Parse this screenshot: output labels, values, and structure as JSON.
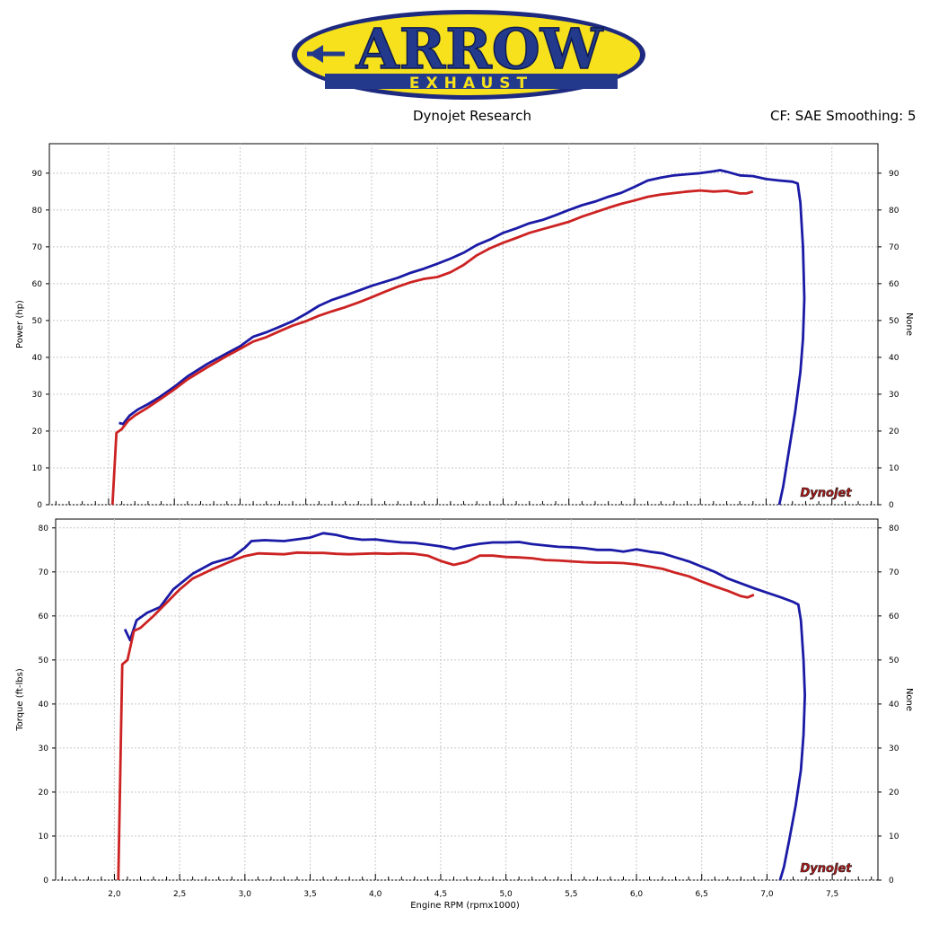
{
  "logo": {
    "brand": "ARROW",
    "sub": "EXHAUST"
  },
  "header": {
    "left": "Dynojet Research",
    "right": "CF: SAE Smoothing: 5"
  },
  "colors": {
    "blue": "#1a1aa6",
    "red": "#cc2222",
    "grid": "#c8c8c8"
  },
  "watermark": {
    "text": "Dynojet"
  },
  "chart_data": [
    {
      "type": "line",
      "ylabel": "Power (hp)",
      "ylabel_right": "None",
      "xlim": [
        1.55,
        7.85
      ],
      "ylim": [
        0,
        98
      ],
      "yticks": [
        0,
        10,
        20,
        30,
        40,
        50,
        60,
        70,
        80,
        90
      ],
      "grid": true,
      "series": [
        {
          "color": "blue",
          "points": [
            [
              2.08,
              22.2
            ],
            [
              2.11,
              21.9
            ],
            [
              2.16,
              24.2
            ],
            [
              2.22,
              25.8
            ],
            [
              2.3,
              27.3
            ],
            [
              2.38,
              29
            ],
            [
              2.5,
              32
            ],
            [
              2.6,
              34.8
            ],
            [
              2.75,
              38.2
            ],
            [
              2.9,
              41.1
            ],
            [
              3.0,
              43
            ],
            [
              3.1,
              45.6
            ],
            [
              3.2,
              46.8
            ],
            [
              3.3,
              48.3
            ],
            [
              3.4,
              49.8
            ],
            [
              3.5,
              51.8
            ],
            [
              3.6,
              54
            ],
            [
              3.7,
              55.6
            ],
            [
              3.8,
              56.8
            ],
            [
              3.9,
              58.1
            ],
            [
              4.0,
              59.4
            ],
            [
              4.1,
              60.5
            ],
            [
              4.2,
              61.6
            ],
            [
              4.3,
              63
            ],
            [
              4.4,
              64.1
            ],
            [
              4.5,
              65.4
            ],
            [
              4.6,
              66.8
            ],
            [
              4.7,
              68.4
            ],
            [
              4.8,
              70.5
            ],
            [
              4.9,
              72
            ],
            [
              5.0,
              73.8
            ],
            [
              5.1,
              75
            ],
            [
              5.2,
              76.4
            ],
            [
              5.3,
              77.3
            ],
            [
              5.4,
              78.6
            ],
            [
              5.5,
              80
            ],
            [
              5.6,
              81.3
            ],
            [
              5.7,
              82.3
            ],
            [
              5.8,
              83.6
            ],
            [
              5.9,
              84.7
            ],
            [
              6.0,
              86.3
            ],
            [
              6.1,
              88
            ],
            [
              6.2,
              88.8
            ],
            [
              6.3,
              89.4
            ],
            [
              6.4,
              89.7
            ],
            [
              6.5,
              90
            ],
            [
              6.6,
              90.5
            ],
            [
              6.65,
              90.8
            ],
            [
              6.7,
              90.4
            ],
            [
              6.8,
              89.4
            ],
            [
              6.9,
              89.2
            ],
            [
              7.0,
              88.4
            ],
            [
              7.1,
              88
            ],
            [
              7.2,
              87.7
            ],
            [
              7.24,
              87.2
            ],
            [
              7.26,
              82
            ],
            [
              7.28,
              70
            ],
            [
              7.29,
              56
            ],
            [
              7.28,
              45
            ],
            [
              7.26,
              36
            ],
            [
              7.22,
              25
            ],
            [
              7.17,
              14
            ],
            [
              7.13,
              5
            ],
            [
              7.1,
              0
            ]
          ]
        },
        {
          "color": "red",
          "points": [
            [
              2.03,
              0
            ],
            [
              2.06,
              19.5
            ],
            [
              2.1,
              20.5
            ],
            [
              2.15,
              22.8
            ],
            [
              2.2,
              24.2
            ],
            [
              2.3,
              26.4
            ],
            [
              2.4,
              28.8
            ],
            [
              2.5,
              31.3
            ],
            [
              2.6,
              34
            ],
            [
              2.75,
              37.3
            ],
            [
              2.9,
              40.4
            ],
            [
              3.0,
              42.3
            ],
            [
              3.1,
              44.3
            ],
            [
              3.2,
              45.5
            ],
            [
              3.3,
              47.1
            ],
            [
              3.4,
              48.6
            ],
            [
              3.5,
              49.8
            ],
            [
              3.6,
              51.3
            ],
            [
              3.7,
              52.5
            ],
            [
              3.8,
              53.6
            ],
            [
              3.9,
              54.9
            ],
            [
              4.0,
              56.3
            ],
            [
              4.1,
              57.8
            ],
            [
              4.2,
              59.2
            ],
            [
              4.3,
              60.4
            ],
            [
              4.4,
              61.3
            ],
            [
              4.5,
              61.8
            ],
            [
              4.6,
              63.1
            ],
            [
              4.7,
              65.1
            ],
            [
              4.8,
              67.7
            ],
            [
              4.9,
              69.6
            ],
            [
              5.0,
              71.1
            ],
            [
              5.1,
              72.4
            ],
            [
              5.2,
              73.8
            ],
            [
              5.3,
              74.8
            ],
            [
              5.4,
              75.8
            ],
            [
              5.5,
              76.8
            ],
            [
              5.6,
              78.2
            ],
            [
              5.7,
              79.4
            ],
            [
              5.8,
              80.6
            ],
            [
              5.9,
              81.7
            ],
            [
              6.0,
              82.6
            ],
            [
              6.1,
              83.6
            ],
            [
              6.2,
              84.2
            ],
            [
              6.3,
              84.6
            ],
            [
              6.4,
              85
            ],
            [
              6.5,
              85.3
            ],
            [
              6.6,
              85
            ],
            [
              6.7,
              85.2
            ],
            [
              6.8,
              84.5
            ],
            [
              6.85,
              84.5
            ],
            [
              6.9,
              85
            ]
          ]
        }
      ]
    },
    {
      "type": "line",
      "xlabel": "Engine RPM (rpmx1000)",
      "ylabel": "Torque (ft-lbs)",
      "ylabel_right": "None",
      "xlim": [
        1.55,
        7.85
      ],
      "ylim": [
        0,
        82
      ],
      "yticks": [
        0,
        10,
        20,
        30,
        40,
        50,
        60,
        70,
        80
      ],
      "xticks": [
        "2,0",
        "2,5",
        "3,0",
        "3,5",
        "4,0",
        "4,5",
        "5,0",
        "5,5",
        "6,0",
        "6,5",
        "7,0",
        "7,5"
      ],
      "grid": true,
      "series": [
        {
          "color": "blue",
          "points": [
            [
              2.08,
              57
            ],
            [
              2.12,
              54.5
            ],
            [
              2.17,
              59
            ],
            [
              2.25,
              60.7
            ],
            [
              2.35,
              62
            ],
            [
              2.45,
              66
            ],
            [
              2.6,
              69.6
            ],
            [
              2.75,
              72
            ],
            [
              2.9,
              73.3
            ],
            [
              3.0,
              75.5
            ],
            [
              3.05,
              77
            ],
            [
              3.15,
              77.2
            ],
            [
              3.3,
              77
            ],
            [
              3.5,
              77.8
            ],
            [
              3.6,
              78.8
            ],
            [
              3.7,
              78.4
            ],
            [
              3.8,
              77.7
            ],
            [
              3.9,
              77.3
            ],
            [
              4.0,
              77.4
            ],
            [
              4.1,
              77
            ],
            [
              4.2,
              76.7
            ],
            [
              4.3,
              76.6
            ],
            [
              4.4,
              76.2
            ],
            [
              4.5,
              75.8
            ],
            [
              4.6,
              75.2
            ],
            [
              4.7,
              75.9
            ],
            [
              4.8,
              76.4
            ],
            [
              4.9,
              76.7
            ],
            [
              5.0,
              76.7
            ],
            [
              5.1,
              76.8
            ],
            [
              5.2,
              76.3
            ],
            [
              5.3,
              76
            ],
            [
              5.4,
              75.7
            ],
            [
              5.5,
              75.6
            ],
            [
              5.6,
              75.4
            ],
            [
              5.7,
              75
            ],
            [
              5.8,
              75
            ],
            [
              5.9,
              74.6
            ],
            [
              6.0,
              75.1
            ],
            [
              6.1,
              74.6
            ],
            [
              6.2,
              74.2
            ],
            [
              6.3,
              73.3
            ],
            [
              6.4,
              72.4
            ],
            [
              6.5,
              71.2
            ],
            [
              6.6,
              70
            ],
            [
              6.7,
              68.5
            ],
            [
              6.8,
              67.4
            ],
            [
              6.9,
              66.3
            ],
            [
              7.0,
              65.3
            ],
            [
              7.1,
              64.3
            ],
            [
              7.2,
              63.2
            ],
            [
              7.24,
              62.6
            ],
            [
              7.26,
              59
            ],
            [
              7.28,
              50
            ],
            [
              7.29,
              42
            ],
            [
              7.28,
              33
            ],
            [
              7.26,
              25
            ],
            [
              7.22,
              17
            ],
            [
              7.17,
              9
            ],
            [
              7.13,
              3
            ],
            [
              7.1,
              0
            ]
          ]
        },
        {
          "color": "red",
          "points": [
            [
              2.03,
              0
            ],
            [
              2.06,
              49
            ],
            [
              2.1,
              50
            ],
            [
              2.15,
              56.6
            ],
            [
              2.2,
              57.3
            ],
            [
              2.3,
              60
            ],
            [
              2.4,
              63
            ],
            [
              2.5,
              66
            ],
            [
              2.6,
              68.5
            ],
            [
              2.75,
              70.6
            ],
            [
              2.9,
              72.5
            ],
            [
              3.0,
              73.6
            ],
            [
              3.1,
              74.2
            ],
            [
              3.2,
              74.1
            ],
            [
              3.3,
              74
            ],
            [
              3.4,
              74.4
            ],
            [
              3.5,
              74.3
            ],
            [
              3.6,
              74.3
            ],
            [
              3.7,
              74.1
            ],
            [
              3.8,
              74
            ],
            [
              3.9,
              74.1
            ],
            [
              4.0,
              74.2
            ],
            [
              4.1,
              74.1
            ],
            [
              4.2,
              74.2
            ],
            [
              4.3,
              74.1
            ],
            [
              4.4,
              73.7
            ],
            [
              4.5,
              72.5
            ],
            [
              4.6,
              71.6
            ],
            [
              4.7,
              72.3
            ],
            [
              4.8,
              73.7
            ],
            [
              4.9,
              73.7
            ],
            [
              5.0,
              73.4
            ],
            [
              5.1,
              73.3
            ],
            [
              5.2,
              73.1
            ],
            [
              5.3,
              72.7
            ],
            [
              5.4,
              72.6
            ],
            [
              5.5,
              72.4
            ],
            [
              5.6,
              72.2
            ],
            [
              5.7,
              72.1
            ],
            [
              5.8,
              72.1
            ],
            [
              5.9,
              72
            ],
            [
              6.0,
              71.7
            ],
            [
              6.1,
              71.2
            ],
            [
              6.2,
              70.7
            ],
            [
              6.3,
              69.8
            ],
            [
              6.4,
              69
            ],
            [
              6.5,
              67.8
            ],
            [
              6.6,
              66.7
            ],
            [
              6.7,
              65.7
            ],
            [
              6.8,
              64.5
            ],
            [
              6.85,
              64.2
            ],
            [
              6.9,
              64.8
            ]
          ]
        }
      ]
    }
  ]
}
